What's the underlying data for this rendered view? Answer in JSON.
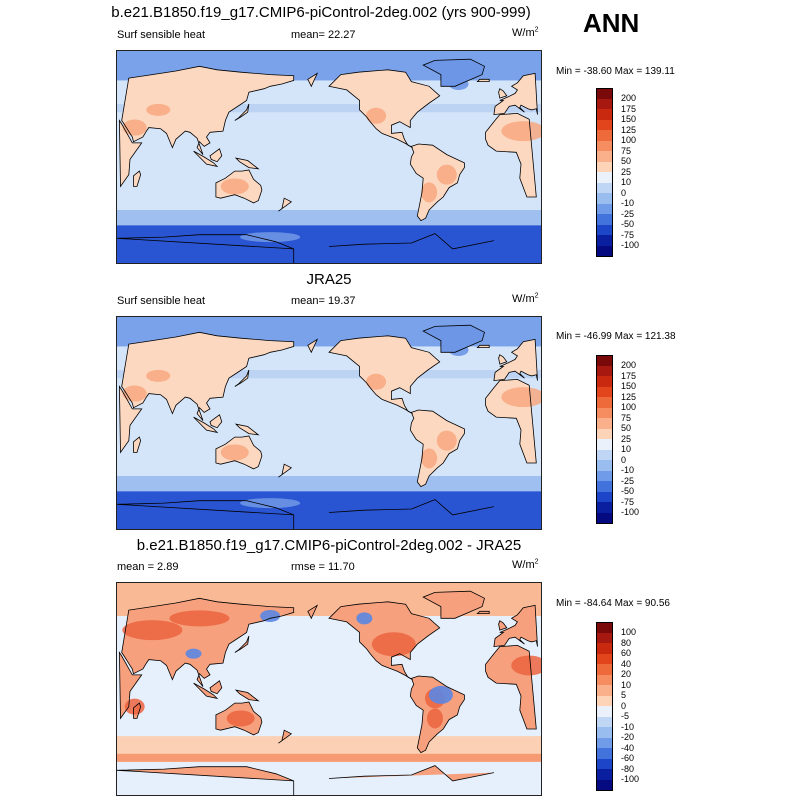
{
  "season": "ANN",
  "panels": [
    {
      "title": "b.e21.B1850.f19_g17.CMIP6-piControl-2deg.002 (yrs 900-999)",
      "left_label": "Surf sensible heat",
      "center_label": "mean=  22.27",
      "units": "W/m",
      "units_sup": "2",
      "minmax": "Min = -38.60 Max = 139.11",
      "field": "model",
      "colorbar": {
        "ticks": [
          "200",
          "175",
          "150",
          "125",
          "100",
          "75",
          "50",
          "25",
          "10",
          "0",
          "-10",
          "-25",
          "-50",
          "-75",
          "-100"
        ],
        "colors": [
          "#7a0a0a",
          "#a61810",
          "#c8290f",
          "#e2441c",
          "#ef6a3a",
          "#f58d60",
          "#fab08a",
          "#fdd4b8",
          "#eaf1fb",
          "#bfd6f5",
          "#9abdf0",
          "#6f9be8",
          "#4272dc",
          "#1d45c8",
          "#0a1ea0",
          "#050a80"
        ]
      }
    },
    {
      "title": "JRA25",
      "left_label": "Surf sensible heat",
      "center_label": "mean=  19.37",
      "units": "W/m",
      "units_sup": "2",
      "minmax": "Min = -46.99 Max = 121.38",
      "field": "obs",
      "colorbar": {
        "ticks": [
          "200",
          "175",
          "150",
          "125",
          "100",
          "75",
          "50",
          "25",
          "10",
          "0",
          "-10",
          "-25",
          "-50",
          "-75",
          "-100"
        ],
        "colors": [
          "#7a0a0a",
          "#a61810",
          "#c8290f",
          "#e2441c",
          "#ef6a3a",
          "#f58d60",
          "#fab08a",
          "#fdd4b8",
          "#eaf1fb",
          "#bfd6f5",
          "#9abdf0",
          "#6f9be8",
          "#4272dc",
          "#1d45c8",
          "#0a1ea0",
          "#050a80"
        ]
      }
    },
    {
      "title": "b.e21.B1850.f19_g17.CMIP6-piControl-2deg.002 - JRA25",
      "left_label": "mean =  2.89",
      "center_label": "rmse =  11.70",
      "units": "W/m",
      "units_sup": "2",
      "minmax": "Min = -84.64 Max =  90.56",
      "field": "diff",
      "colorbar": {
        "ticks": [
          "100",
          "80",
          "60",
          "40",
          "20",
          "10",
          "5",
          "0",
          "-5",
          "-10",
          "-20",
          "-40",
          "-60",
          "-80",
          "-100"
        ],
        "colors": [
          "#7a0a0a",
          "#a61810",
          "#c8290f",
          "#e2441c",
          "#ef6a3a",
          "#f58d60",
          "#fab08a",
          "#fdd4b8",
          "#eaf1fb",
          "#bfd6f5",
          "#9abdf0",
          "#6f9be8",
          "#4272dc",
          "#1d45c8",
          "#0a1ea0",
          "#050a80"
        ]
      }
    }
  ]
}
